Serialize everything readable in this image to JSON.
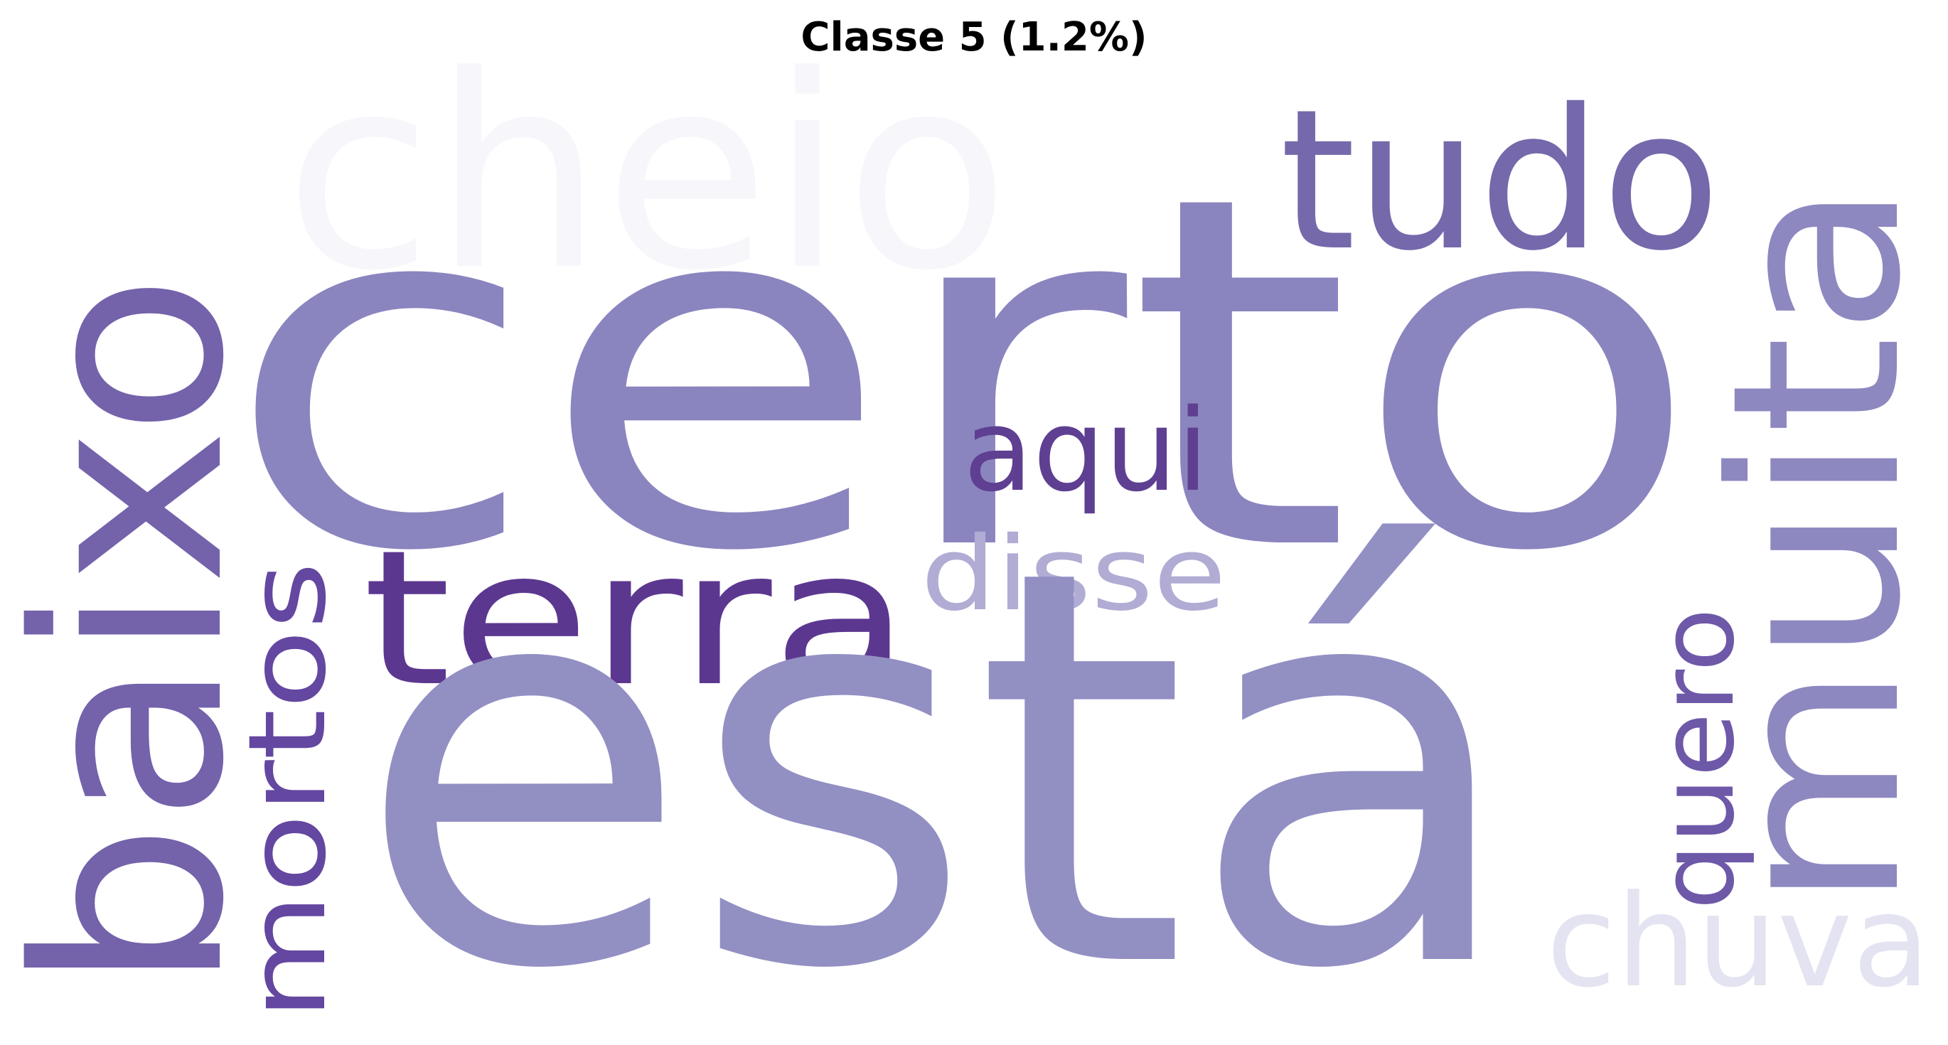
{
  "title": "Classe 5 (1.2%)",
  "words": [
    {
      "id": "cheio",
      "text": "cheio",
      "color": "#f7f6fb"
    },
    {
      "id": "certo",
      "text": "certo",
      "color": "#8a85bf"
    },
    {
      "id": "tudo",
      "text": "tudo",
      "color": "#7568ab"
    },
    {
      "id": "muita",
      "text": "muita",
      "color": "#8d88c0"
    },
    {
      "id": "baixo",
      "text": "baixo",
      "color": "#7462ab"
    },
    {
      "id": "aqui",
      "text": "aqui",
      "color": "#5f3f92"
    },
    {
      "id": "disse",
      "text": "disse",
      "color": "#b0acd4"
    },
    {
      "id": "terra",
      "text": "terra",
      "color": "#5c3790"
    },
    {
      "id": "mortos",
      "text": "mortos",
      "color": "#6447a0"
    },
    {
      "id": "esta",
      "text": "está",
      "color": "#928fc3"
    },
    {
      "id": "quero",
      "text": "quero",
      "color": "#6e58a8"
    },
    {
      "id": "chuva",
      "text": "chuva",
      "color": "#e4e3f1"
    }
  ]
}
